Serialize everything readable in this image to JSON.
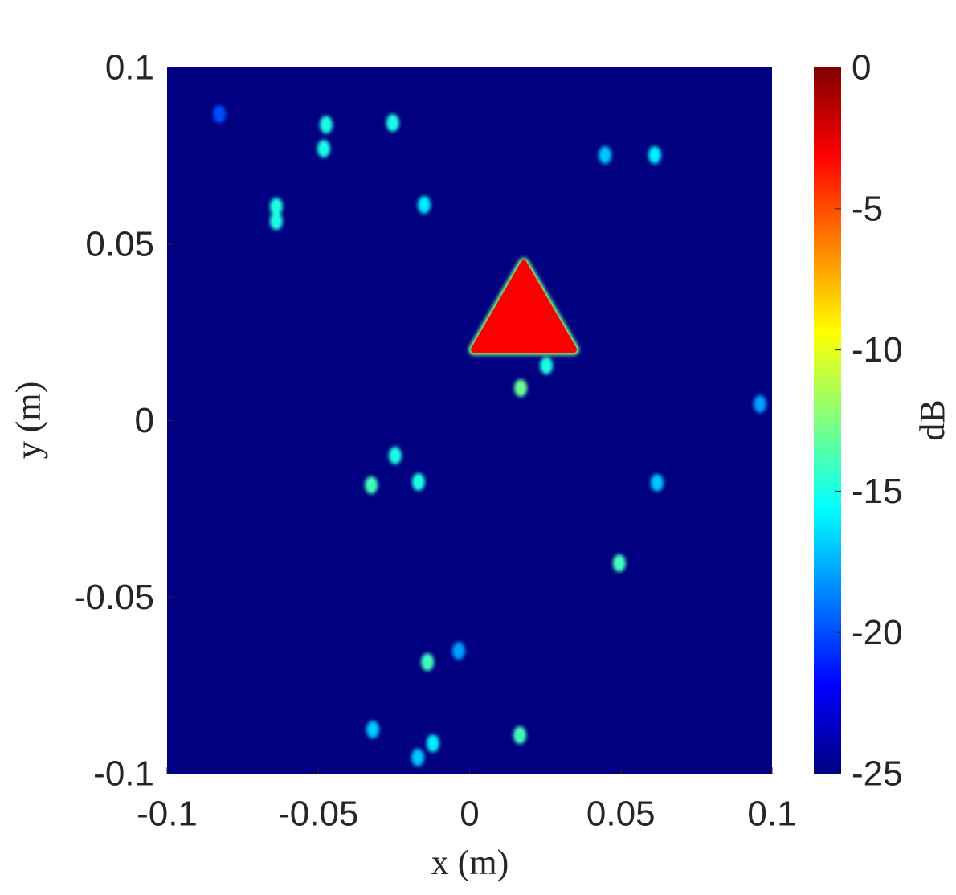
{
  "chart_data": {
    "type": "heatmap",
    "xlabel": "x (m)",
    "ylabel": "y (m)",
    "colorbar_label": "dB",
    "xlim": [
      -0.1,
      0.1
    ],
    "ylim": [
      -0.1,
      0.1
    ],
    "xticks": [
      -0.1,
      -0.05,
      0,
      0.05,
      0.1
    ],
    "yticks": [
      -0.1,
      -0.05,
      0,
      0.05,
      0.1
    ],
    "clim": [
      -25,
      0
    ],
    "cticks": [
      -25,
      -20,
      -15,
      -10,
      -5,
      0
    ],
    "colormap": "jet",
    "target": {
      "x": [
        0.0179,
        0.0015,
        0.0344
      ],
      "y": [
        0.0445,
        0.0201,
        0.0201
      ],
      "value": -3
    },
    "spots": [
      {
        "x": -0.0827,
        "y": 0.0868,
        "value": -20
      },
      {
        "x": -0.0474,
        "y": 0.0838,
        "value": -15
      },
      {
        "x": -0.0482,
        "y": 0.077,
        "value": -15
      },
      {
        "x": -0.0254,
        "y": 0.0843,
        "value": -15
      },
      {
        "x": -0.0639,
        "y": 0.0606,
        "value": -15
      },
      {
        "x": -0.0639,
        "y": 0.0565,
        "value": -15
      },
      {
        "x": -0.015,
        "y": 0.0611,
        "value": -16
      },
      {
        "x": 0.0448,
        "y": 0.0752,
        "value": -17
      },
      {
        "x": 0.0612,
        "y": 0.0752,
        "value": -16
      },
      {
        "x": 0.0254,
        "y": 0.0156,
        "value": -15
      },
      {
        "x": 0.0169,
        "y": 0.0092,
        "value": -13
      },
      {
        "x": 0.096,
        "y": 0.0047,
        "value": -18
      },
      {
        "x": -0.0246,
        "y": -0.0099,
        "value": -15
      },
      {
        "x": -0.0325,
        "y": -0.0183,
        "value": -14
      },
      {
        "x": -0.0169,
        "y": -0.0174,
        "value": -15
      },
      {
        "x": 0.062,
        "y": -0.0176,
        "value": -17
      },
      {
        "x": 0.0495,
        "y": -0.0404,
        "value": -14
      },
      {
        "x": -0.0139,
        "y": -0.0684,
        "value": -14
      },
      {
        "x": -0.0036,
        "y": -0.0652,
        "value": -18
      },
      {
        "x": -0.032,
        "y": -0.0875,
        "value": -17
      },
      {
        "x": -0.0121,
        "y": -0.0914,
        "value": -16
      },
      {
        "x": -0.0171,
        "y": -0.0954,
        "value": -17
      },
      {
        "x": 0.0166,
        "y": -0.0891,
        "value": -14
      }
    ]
  }
}
